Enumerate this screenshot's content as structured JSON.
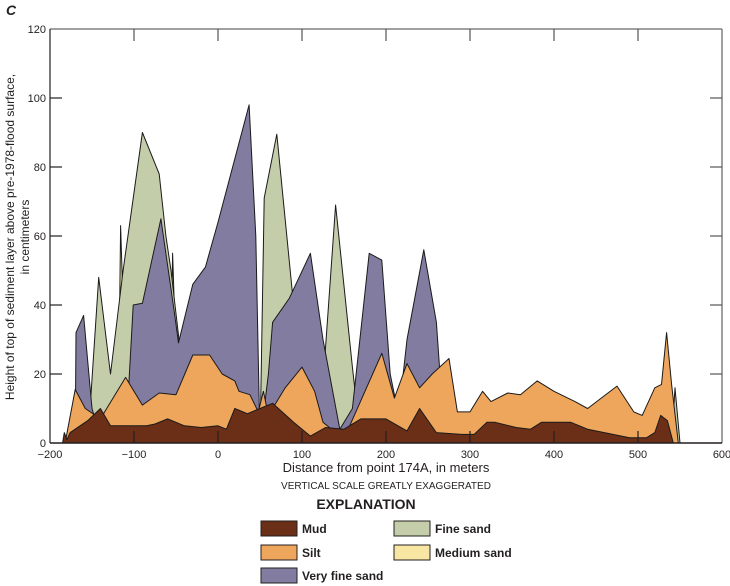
{
  "chart_data": {
    "type": "area",
    "panel_label": "C",
    "title": "",
    "xlabel": "Distance from point 174A, in meters",
    "xnote": "VERTICAL SCALE GREATLY EXAGGERATED",
    "ylabel_line1": "Height of top of sediment layer above pre-1978-flood surface,",
    "ylabel_line2": "in centimeters",
    "xlim": [
      -200,
      600
    ],
    "ylim": [
      0,
      120
    ],
    "xticks": [
      -200,
      -100,
      0,
      100,
      200,
      300,
      400,
      500,
      600
    ],
    "xtick_labels": [
      "−200",
      "−100",
      "0",
      "100",
      "200",
      "300",
      "400",
      "500",
      "600"
    ],
    "yticks": [
      0,
      20,
      40,
      60,
      80,
      100,
      120
    ],
    "ytick_labels": [
      "0",
      "20",
      "40",
      "60",
      "80",
      "100",
      "120"
    ],
    "grid": false,
    "legend": {
      "title": "EXPLANATION",
      "placement": "bottom-center",
      "items": [
        {
          "name": "Mud",
          "color": "#6b2e17"
        },
        {
          "name": "Silt",
          "color": "#eea65c"
        },
        {
          "name": "Very fine sand",
          "color": "#837ca1"
        },
        {
          "name": "Fine sand",
          "color": "#c4cda9"
        },
        {
          "name": "Medium sand",
          "color": "#f7e7a3"
        }
      ]
    },
    "series": [
      {
        "name": "Medium sand",
        "color": "#f7e7a3",
        "points": [
          [
            -120,
            0
          ],
          [
            -117,
            40
          ],
          [
            -116,
            63
          ],
          [
            -113,
            40
          ],
          [
            -108,
            0
          ],
          [
            -60,
            0
          ],
          [
            -55,
            40
          ],
          [
            -54,
            55
          ],
          [
            -52,
            40
          ],
          [
            -48,
            0
          ]
        ]
      },
      {
        "name": "Fine sand",
        "color": "#c4cda9",
        "points": [
          [
            -155,
            0
          ],
          [
            -142,
            48
          ],
          [
            -128,
            20
          ],
          [
            -113,
            50
          ],
          [
            -90,
            90
          ],
          [
            -70,
            78
          ],
          [
            -62,
            60
          ],
          [
            -56,
            50
          ],
          [
            -46,
            29
          ],
          [
            -30,
            0
          ],
          [
            50,
            0
          ],
          [
            55,
            71
          ],
          [
            70,
            89.5
          ],
          [
            90,
            40
          ],
          [
            95,
            0
          ],
          [
            120,
            0
          ],
          [
            140,
            69
          ],
          [
            160,
            22
          ],
          [
            170,
            0
          ],
          [
            540,
            0
          ],
          [
            544,
            16
          ],
          [
            550,
            0
          ]
        ]
      },
      {
        "name": "Very fine sand",
        "color": "#837ca1",
        "points": [
          [
            -170,
            0
          ],
          [
            -169,
            32
          ],
          [
            -160,
            37
          ],
          [
            -150,
            10
          ],
          [
            -138,
            0
          ],
          [
            -110,
            0
          ],
          [
            -101,
            40
          ],
          [
            -90,
            40.5
          ],
          [
            -68,
            65
          ],
          [
            -52,
            38
          ],
          [
            -47,
            29
          ],
          [
            -30,
            46
          ],
          [
            -15,
            51
          ],
          [
            0,
            64
          ],
          [
            37,
            98
          ],
          [
            45,
            60
          ],
          [
            50,
            0
          ],
          [
            60,
            20
          ],
          [
            65,
            35
          ],
          [
            85,
            42
          ],
          [
            110,
            55
          ],
          [
            125,
            30
          ],
          [
            145,
            4
          ],
          [
            160,
            10
          ],
          [
            180,
            55
          ],
          [
            195,
            53
          ],
          [
            205,
            20
          ],
          [
            215,
            8
          ],
          [
            225,
            30
          ],
          [
            245,
            56
          ],
          [
            260,
            35
          ],
          [
            270,
            0
          ]
        ]
      },
      {
        "name": "Silt",
        "color": "#eea65c",
        "points": [
          [
            -182,
            0
          ],
          [
            -170,
            15.5
          ],
          [
            -158,
            10
          ],
          [
            -140,
            7
          ],
          [
            -110,
            19
          ],
          [
            -90,
            11
          ],
          [
            -70,
            14.5
          ],
          [
            -50,
            14
          ],
          [
            -30,
            25.5
          ],
          [
            -10,
            25.5
          ],
          [
            5,
            20
          ],
          [
            20,
            18
          ],
          [
            25,
            15
          ],
          [
            38,
            14
          ],
          [
            48,
            9
          ],
          [
            54,
            15
          ],
          [
            60,
            8
          ],
          [
            80,
            16
          ],
          [
            100,
            22
          ],
          [
            115,
            15
          ],
          [
            125,
            6
          ],
          [
            140,
            3
          ],
          [
            155,
            4
          ],
          [
            195,
            26
          ],
          [
            210,
            13
          ],
          [
            225,
            23
          ],
          [
            240,
            16
          ],
          [
            255,
            20
          ],
          [
            275,
            24.5
          ],
          [
            285,
            9
          ],
          [
            300,
            9
          ],
          [
            315,
            15
          ],
          [
            325,
            12
          ],
          [
            345,
            14.5
          ],
          [
            360,
            14
          ],
          [
            380,
            18
          ],
          [
            400,
            15
          ],
          [
            425,
            12
          ],
          [
            440,
            10
          ],
          [
            475,
            16.5
          ],
          [
            495,
            9
          ],
          [
            505,
            8
          ],
          [
            520,
            16
          ],
          [
            528,
            17
          ],
          [
            534,
            32
          ],
          [
            540,
            17
          ],
          [
            548,
            0
          ]
        ]
      },
      {
        "name": "Mud",
        "color": "#6b2e17",
        "points": [
          [
            -185,
            0
          ],
          [
            -183,
            3
          ],
          [
            -180,
            1
          ],
          [
            -176,
            3
          ],
          [
            -155,
            6.5
          ],
          [
            -140,
            10
          ],
          [
            -128,
            5
          ],
          [
            -100,
            5
          ],
          [
            -85,
            5
          ],
          [
            -75,
            5.5
          ],
          [
            -60,
            7
          ],
          [
            -50,
            6
          ],
          [
            -40,
            5
          ],
          [
            -20,
            4.5
          ],
          [
            0,
            5
          ],
          [
            10,
            4
          ],
          [
            20,
            10
          ],
          [
            35,
            8.5
          ],
          [
            65,
            11.5
          ],
          [
            90,
            6
          ],
          [
            110,
            2
          ],
          [
            128,
            4.5
          ],
          [
            150,
            4
          ],
          [
            170,
            7
          ],
          [
            200,
            7
          ],
          [
            225,
            3.5
          ],
          [
            240,
            10
          ],
          [
            260,
            3
          ],
          [
            290,
            2.5
          ],
          [
            305,
            2.5
          ],
          [
            320,
            6
          ],
          [
            330,
            6
          ],
          [
            355,
            4.5
          ],
          [
            372,
            4
          ],
          [
            385,
            6
          ],
          [
            420,
            6
          ],
          [
            440,
            4
          ],
          [
            460,
            3
          ],
          [
            490,
            1.5
          ],
          [
            510,
            1.5
          ],
          [
            520,
            3
          ],
          [
            527,
            8
          ],
          [
            535,
            6.5
          ],
          [
            542,
            0
          ]
        ]
      }
    ]
  }
}
